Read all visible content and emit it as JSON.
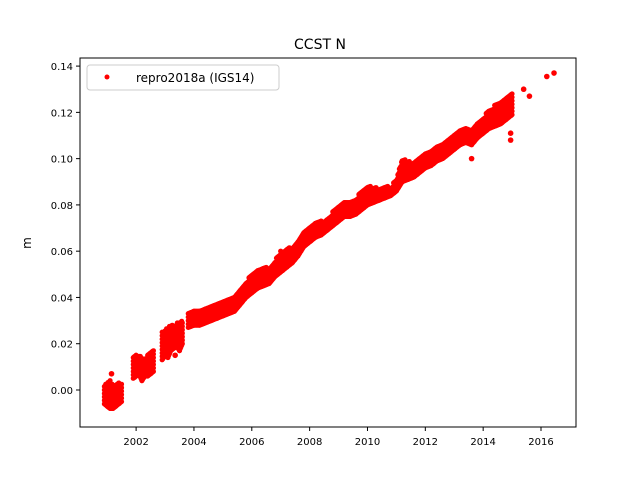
{
  "chart_data": {
    "type": "scatter",
    "title": "CCST N",
    "xlabel": "",
    "ylabel": "m",
    "xlim": [
      2000.06,
      2017.21
    ],
    "ylim": [
      -0.016,
      0.1435
    ],
    "xticks": [
      2002,
      2004,
      2006,
      2008,
      2010,
      2012,
      2014,
      2016
    ],
    "xtick_labels": [
      "2002",
      "2004",
      "2006",
      "2008",
      "2010",
      "2012",
      "2014",
      "2016"
    ],
    "yticks": [
      0.0,
      0.02,
      0.04,
      0.06,
      0.08,
      0.1,
      0.12,
      0.14
    ],
    "ytick_labels": [
      "0.00",
      "0.02",
      "0.04",
      "0.06",
      "0.08",
      "0.10",
      "0.12",
      "0.14"
    ],
    "grid": false,
    "legend": {
      "placement": "top-left",
      "entries": [
        "repro2018a (IGS14)"
      ]
    },
    "series": [
      {
        "name": "repro2018a (IGS14)",
        "color": "#ff0000",
        "note_format": "dense daily samples summarized as [year, y_min, y_max] bands per contiguous segment",
        "segments": [
          [
            [
              2000.9,
              -0.006,
              0.002
            ],
            [
              2001.0,
              -0.007,
              0.003
            ],
            [
              2001.1,
              -0.008,
              0.004
            ],
            [
              2001.2,
              -0.008,
              0.002
            ],
            [
              2001.3,
              -0.007,
              0.002
            ],
            [
              2001.4,
              -0.006,
              0.003
            ],
            [
              2001.5,
              -0.005,
              0.003
            ]
          ],
          [
            [
              2001.9,
              0.005,
              0.014
            ],
            [
              2002.0,
              0.006,
              0.015
            ],
            [
              2002.1,
              0.007,
              0.015
            ],
            [
              2002.2,
              0.004,
              0.014
            ],
            [
              2002.3,
              0.006,
              0.013
            ],
            [
              2002.4,
              0.006,
              0.015
            ],
            [
              2002.5,
              0.007,
              0.016
            ],
            [
              2002.6,
              0.008,
              0.017
            ]
          ],
          [
            [
              2002.9,
              0.013,
              0.025
            ],
            [
              2003.0,
              0.015,
              0.026
            ],
            [
              2003.1,
              0.014,
              0.027
            ],
            [
              2003.2,
              0.017,
              0.028
            ],
            [
              2003.3,
              0.018,
              0.028
            ],
            [
              2003.4,
              0.019,
              0.029
            ],
            [
              2003.5,
              0.017,
              0.029
            ],
            [
              2003.6,
              0.02,
              0.03
            ]
          ],
          [
            [
              2003.8,
              0.027,
              0.034
            ],
            [
              2004.0,
              0.028,
              0.035
            ],
            [
              2004.2,
              0.028,
              0.034
            ],
            [
              2004.4,
              0.029,
              0.035
            ],
            [
              2004.6,
              0.03,
              0.036
            ],
            [
              2004.8,
              0.031,
              0.037
            ],
            [
              2005.0,
              0.032,
              0.039
            ],
            [
              2005.2,
              0.033,
              0.04
            ],
            [
              2005.4,
              0.034,
              0.041
            ],
            [
              2005.6,
              0.037,
              0.044
            ],
            [
              2005.8,
              0.04,
              0.047
            ],
            [
              2006.0,
              0.042,
              0.05
            ],
            [
              2006.2,
              0.044,
              0.052
            ],
            [
              2006.4,
              0.045,
              0.053
            ],
            [
              2006.6,
              0.046,
              0.053
            ],
            [
              2006.8,
              0.049,
              0.056
            ],
            [
              2007.0,
              0.051,
              0.06
            ],
            [
              2007.2,
              0.053,
              0.061
            ],
            [
              2007.4,
              0.055,
              0.062
            ],
            [
              2007.6,
              0.058,
              0.064
            ],
            [
              2007.8,
              0.062,
              0.068
            ],
            [
              2008.0,
              0.064,
              0.07
            ],
            [
              2008.2,
              0.066,
              0.072
            ],
            [
              2008.4,
              0.067,
              0.073
            ],
            [
              2008.6,
              0.069,
              0.074
            ],
            [
              2008.8,
              0.071,
              0.077
            ],
            [
              2009.0,
              0.073,
              0.08
            ],
            [
              2009.2,
              0.075,
              0.082
            ],
            [
              2009.4,
              0.075,
              0.081
            ],
            [
              2009.6,
              0.076,
              0.083
            ],
            [
              2009.8,
              0.078,
              0.086
            ],
            [
              2010.0,
              0.08,
              0.088
            ],
            [
              2010.2,
              0.081,
              0.088
            ],
            [
              2010.4,
              0.082,
              0.087
            ],
            [
              2010.6,
              0.083,
              0.088
            ],
            [
              2010.8,
              0.084,
              0.088
            ],
            [
              2011.0,
              0.086,
              0.091
            ],
            [
              2011.2,
              0.09,
              0.1
            ],
            [
              2011.4,
              0.091,
              0.099
            ],
            [
              2011.6,
              0.092,
              0.098
            ],
            [
              2011.8,
              0.094,
              0.1
            ],
            [
              2012.0,
              0.096,
              0.102
            ],
            [
              2012.2,
              0.097,
              0.104
            ],
            [
              2012.4,
              0.099,
              0.106
            ],
            [
              2012.6,
              0.1,
              0.107
            ],
            [
              2012.8,
              0.102,
              0.109
            ],
            [
              2013.0,
              0.104,
              0.111
            ],
            [
              2013.2,
              0.106,
              0.112
            ],
            [
              2013.4,
              0.107,
              0.113
            ],
            [
              2013.6,
              0.106,
              0.113
            ],
            [
              2013.8,
              0.109,
              0.115
            ],
            [
              2014.0,
              0.111,
              0.118
            ],
            [
              2014.2,
              0.113,
              0.121
            ],
            [
              2014.4,
              0.114,
              0.123
            ],
            [
              2014.6,
              0.115,
              0.124
            ],
            [
              2014.8,
              0.117,
              0.127
            ],
            [
              2015.0,
              0.119,
              0.128
            ]
          ]
        ],
        "outliers": [
          [
            2001.15,
            0.007
          ],
          [
            2003.35,
            0.015
          ],
          [
            2013.6,
            0.1
          ],
          [
            2014.95,
            0.108
          ],
          [
            2014.95,
            0.111
          ],
          [
            2015.4,
            0.13
          ],
          [
            2015.6,
            0.127
          ],
          [
            2016.2,
            0.1355
          ],
          [
            2016.45,
            0.137
          ]
        ]
      }
    ]
  }
}
